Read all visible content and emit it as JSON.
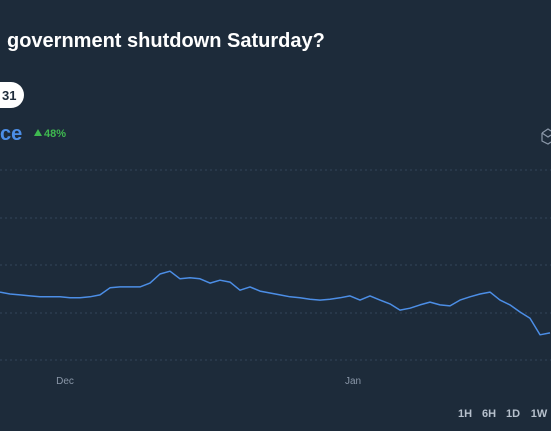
{
  "header": {
    "title": "government shutdown Saturday?",
    "pill": "31"
  },
  "price": {
    "label": "ce",
    "change": "48%"
  },
  "chart_data": {
    "type": "line",
    "color": "#4c8ee6",
    "ylim": [
      0,
      40
    ],
    "values": [
      14.3,
      13.9,
      13.7,
      13.5,
      13.3,
      13.3,
      13.3,
      13.1,
      13.1,
      13.3,
      13.7,
      15.2,
      15.4,
      15.4,
      15.4,
      16.2,
      18.1,
      18.7,
      17.1,
      17.3,
      17.1,
      16.2,
      16.8,
      16.4,
      14.7,
      15.4,
      14.5,
      14.1,
      13.7,
      13.3,
      13.1,
      12.8,
      12.6,
      12.8,
      13.1,
      13.5,
      12.6,
      13.5,
      12.6,
      11.8,
      10.5,
      10.9,
      11.6,
      12.2,
      11.6,
      11.4,
      12.6,
      13.3,
      13.9,
      14.3,
      12.6,
      11.6,
      10.1,
      8.8,
      5.3,
      5.7
    ],
    "x_labels": [
      "Dec",
      "Jan"
    ]
  },
  "ranges": [
    "1H",
    "6H",
    "1D",
    "1W"
  ]
}
